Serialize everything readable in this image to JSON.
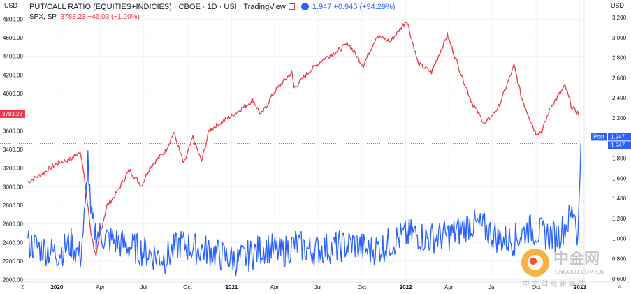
{
  "header": {
    "title": "PUT/CALL RATIO (EQUITIES+INDICIES) · CBOE · 1D · USI · TradingView",
    "main_value": "1.947",
    "main_change": "+0.945 (+94.29%)",
    "sub_symbol": "SPX, SP",
    "sub_value": "3783.23",
    "sub_change": "−46.03 (−1.20%)"
  },
  "left_unit": "USD",
  "right_unit": "USD",
  "colors": {
    "spx": "#f23645",
    "ratio": "#2962ff",
    "axis_text": "#131722",
    "grid": "#f0f3fa"
  },
  "markers": {
    "left_value": "3783.23",
    "post_label": "Post",
    "post_value": "1.947",
    "last_value": "1.947",
    "corner_left": "Z",
    "corner_right": "A"
  },
  "watermark": {
    "cn": "中金网",
    "domain": "CNGOLD.COM.CN",
    "tagline": "中 文 财 经 新 媒 体"
  },
  "chart_data": {
    "type": "line",
    "x_ticks": [
      "2020",
      "Apr",
      "Jul",
      "Oct",
      "2021",
      "Apr",
      "Jul",
      "Oct",
      "2022",
      "Apr",
      "Jul",
      "Oct",
      "2023"
    ],
    "y_left_ticks": [
      "4800.00",
      "4600.00",
      "4400.00",
      "4200.00",
      "4000.00",
      "3800.00",
      "3600.00",
      "3400.00",
      "3200.00",
      "3000.00",
      "2800.00",
      "2600.00",
      "2400.00",
      "2200.00",
      "2000.00"
    ],
    "y_right_ticks": [
      "3.200",
      "3.000",
      "2.800",
      "2.600",
      "2.400",
      "2.200",
      "2.000",
      "1.800",
      "1.600",
      "1.400",
      "1.200",
      "1.000",
      "0.800",
      "0.600"
    ],
    "ylim_left": [
      1990,
      4870
    ],
    "ylim_right": [
      0.58,
      3.25
    ],
    "xlim": [
      "2019-10-28",
      "2023-01-04"
    ],
    "series": [
      {
        "name": "SPX, SP",
        "axis": "left",
        "points": [
          [
            "2019-11-01",
            3050
          ],
          [
            "2019-12-01",
            3140
          ],
          [
            "2020-01-01",
            3250
          ],
          [
            "2020-02-01",
            3300
          ],
          [
            "2020-02-19",
            3390
          ],
          [
            "2020-03-01",
            3000
          ],
          [
            "2020-03-12",
            2520
          ],
          [
            "2020-03-23",
            2240
          ],
          [
            "2020-04-01",
            2500
          ],
          [
            "2020-04-15",
            2800
          ],
          [
            "2020-05-01",
            2900
          ],
          [
            "2020-06-01",
            3180
          ],
          [
            "2020-06-26",
            3010
          ],
          [
            "2020-07-15",
            3220
          ],
          [
            "2020-08-15",
            3380
          ],
          [
            "2020-09-02",
            3580
          ],
          [
            "2020-09-23",
            3240
          ],
          [
            "2020-10-12",
            3530
          ],
          [
            "2020-10-30",
            3270
          ],
          [
            "2020-11-15",
            3600
          ],
          [
            "2020-12-01",
            3660
          ],
          [
            "2021-01-01",
            3760
          ],
          [
            "2021-02-15",
            3930
          ],
          [
            "2021-03-04",
            3770
          ],
          [
            "2021-04-01",
            4020
          ],
          [
            "2021-05-07",
            4230
          ],
          [
            "2021-05-12",
            4060
          ],
          [
            "2021-06-15",
            4250
          ],
          [
            "2021-07-15",
            4380
          ],
          [
            "2021-08-15",
            4470
          ],
          [
            "2021-09-02",
            4540
          ],
          [
            "2021-10-04",
            4300
          ],
          [
            "2021-11-01",
            4620
          ],
          [
            "2021-11-30",
            4560
          ],
          [
            "2022-01-03",
            4790
          ],
          [
            "2022-01-27",
            4320
          ],
          [
            "2022-02-24",
            4230
          ],
          [
            "2022-03-29",
            4630
          ],
          [
            "2022-05-02",
            4140
          ],
          [
            "2022-05-20",
            3900
          ],
          [
            "2022-06-16",
            3670
          ],
          [
            "2022-07-15",
            3860
          ],
          [
            "2022-08-16",
            4300
          ],
          [
            "2022-09-01",
            3950
          ],
          [
            "2022-09-30",
            3580
          ],
          [
            "2022-10-13",
            3590
          ],
          [
            "2022-11-01",
            3860
          ],
          [
            "2022-12-01",
            4080
          ],
          [
            "2022-12-15",
            3850
          ],
          [
            "2022-12-30",
            3783
          ]
        ]
      },
      {
        "name": "PUT/CALL RATIO (EQUITIES+INDICIES)",
        "axis": "right",
        "points": [
          [
            "2019-11-01",
            0.95
          ],
          [
            "2019-12-01",
            0.9
          ],
          [
            "2020-01-01",
            0.85
          ],
          [
            "2020-02-01",
            0.95
          ],
          [
            "2020-02-19",
            0.82
          ],
          [
            "2020-03-01",
            1.3
          ],
          [
            "2020-03-06",
            1.8
          ],
          [
            "2020-03-12",
            1.2
          ],
          [
            "2020-03-23",
            1.05
          ],
          [
            "2020-04-15",
            1.0
          ],
          [
            "2020-05-15",
            0.95
          ],
          [
            "2020-06-15",
            0.9
          ],
          [
            "2020-07-15",
            0.85
          ],
          [
            "2020-08-15",
            0.8
          ],
          [
            "2020-09-15",
            0.95
          ],
          [
            "2020-10-15",
            0.9
          ],
          [
            "2020-11-15",
            0.88
          ],
          [
            "2020-12-15",
            0.82
          ],
          [
            "2021-01-15",
            0.78
          ],
          [
            "2021-02-15",
            0.85
          ],
          [
            "2021-03-15",
            0.92
          ],
          [
            "2021-04-15",
            0.85
          ],
          [
            "2021-05-15",
            0.95
          ],
          [
            "2021-06-15",
            0.88
          ],
          [
            "2021-07-15",
            0.9
          ],
          [
            "2021-08-15",
            0.92
          ],
          [
            "2021-09-15",
            0.95
          ],
          [
            "2021-10-15",
            0.88
          ],
          [
            "2021-11-15",
            0.92
          ],
          [
            "2021-12-15",
            1.0
          ],
          [
            "2022-01-15",
            1.05
          ],
          [
            "2022-02-15",
            1.0
          ],
          [
            "2022-03-15",
            1.02
          ],
          [
            "2022-04-15",
            1.05
          ],
          [
            "2022-05-15",
            1.15
          ],
          [
            "2022-06-15",
            1.1
          ],
          [
            "2022-07-15",
            1.0
          ],
          [
            "2022-08-15",
            0.98
          ],
          [
            "2022-09-15",
            1.1
          ],
          [
            "2022-10-15",
            1.05
          ],
          [
            "2022-11-15",
            1.02
          ],
          [
            "2022-12-05",
            1.15
          ],
          [
            "2022-12-20",
            1.3
          ],
          [
            "2022-12-28",
            1.0
          ],
          [
            "2023-01-03",
            1.947
          ]
        ]
      }
    ]
  }
}
